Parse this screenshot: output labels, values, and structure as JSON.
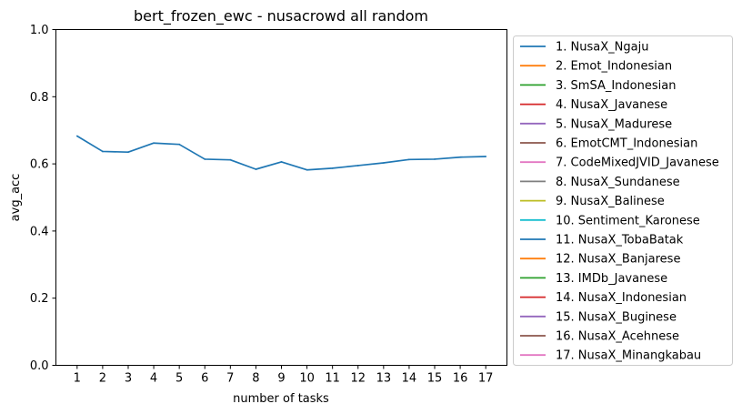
{
  "chart_data": {
    "type": "line",
    "title": "bert_frozen_ewc - nusacrowd all random",
    "xlabel": "number of tasks",
    "ylabel": "avg_acc",
    "x": [
      1,
      2,
      3,
      4,
      5,
      6,
      7,
      8,
      9,
      10,
      11,
      12,
      13,
      14,
      15,
      16,
      17
    ],
    "x_ticks": [
      "1",
      "2",
      "3",
      "4",
      "5",
      "6",
      "7",
      "8",
      "9",
      "10",
      "11",
      "12",
      "13",
      "14",
      "15",
      "16",
      "17"
    ],
    "ylim": [
      0.0,
      1.0
    ],
    "y_ticks": [
      "0.0",
      "0.2",
      "0.4",
      "0.6",
      "0.8",
      "1.0"
    ],
    "grid": false,
    "legend_position": "outside-right",
    "series": [
      {
        "values": [
          0.683,
          0.637,
          0.635,
          0.662,
          0.658,
          0.614,
          0.612,
          0.584,
          0.606,
          0.582,
          0.587,
          0.595,
          0.603,
          0.613,
          0.614,
          0.62,
          0.622
        ],
        "color": "#1f77b4"
      }
    ],
    "legend": [
      {
        "label": "1. NusaX_Ngaju",
        "color": "#1f77b4"
      },
      {
        "label": "2. Emot_Indonesian",
        "color": "#ff7f0e"
      },
      {
        "label": "3. SmSA_Indonesian",
        "color": "#2ca02c"
      },
      {
        "label": "4. NusaX_Javanese",
        "color": "#d62728"
      },
      {
        "label": "5. NusaX_Madurese",
        "color": "#9467bd"
      },
      {
        "label": "6. EmotCMT_Indonesian",
        "color": "#8c564b"
      },
      {
        "label": "7. CodeMixedJVID_Javanese",
        "color": "#e377c2"
      },
      {
        "label": "8. NusaX_Sundanese",
        "color": "#7f7f7f"
      },
      {
        "label": "9. NusaX_Balinese",
        "color": "#bcbd22"
      },
      {
        "label": "10. Sentiment_Karonese",
        "color": "#17becf"
      },
      {
        "label": "11. NusaX_TobaBatak",
        "color": "#1f77b4"
      },
      {
        "label": "12. NusaX_Banjarese",
        "color": "#ff7f0e"
      },
      {
        "label": "13. IMDb_Javanese",
        "color": "#2ca02c"
      },
      {
        "label": "14. NusaX_Indonesian",
        "color": "#d62728"
      },
      {
        "label": "15. NusaX_Buginese",
        "color": "#9467bd"
      },
      {
        "label": "16. NusaX_Acehnese",
        "color": "#8c564b"
      },
      {
        "label": "17. NusaX_Minangkabau",
        "color": "#e377c2"
      }
    ]
  }
}
